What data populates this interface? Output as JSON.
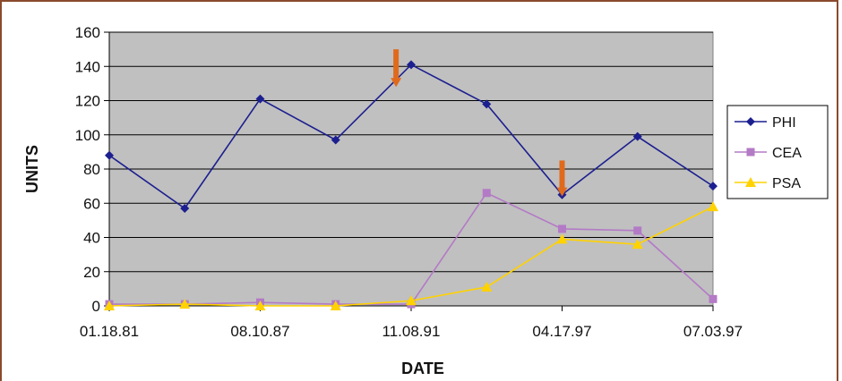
{
  "chart_data": {
    "type": "line",
    "xlabel": "DATE",
    "ylabel": "UNITS",
    "ylim": [
      0,
      160
    ],
    "yticks": [
      0,
      20,
      40,
      60,
      80,
      100,
      120,
      140,
      160
    ],
    "grid": true,
    "legend_position": "right",
    "points": 9,
    "x_tick_labels": [
      "01.18.81",
      "08.10.87",
      "11.08.91",
      "04.17.97",
      "07.03.97"
    ],
    "x_tick_indices": [
      0,
      2,
      4,
      6,
      8
    ],
    "series": [
      {
        "name": "PHI",
        "color": "#1c1f8f",
        "marker": "diamond",
        "values": [
          88,
          57,
          121,
          97,
          141,
          118,
          65,
          99,
          70
        ]
      },
      {
        "name": "CEA",
        "color": "#b37ac6",
        "marker": "square",
        "values": [
          1,
          1,
          2,
          1,
          1,
          66,
          45,
          44,
          4
        ]
      },
      {
        "name": "PSA",
        "color": "#ffd200",
        "marker": "triangle",
        "values": [
          0,
          1,
          0,
          0,
          3,
          11,
          39,
          36,
          58
        ]
      }
    ],
    "annotations": [
      {
        "type": "arrow-down",
        "color": "#e06a1c",
        "x_index": 3.8,
        "y_from": 150,
        "y_to": 128
      },
      {
        "type": "arrow-down",
        "color": "#e06a1c",
        "x_index": 6.0,
        "y_from": 85,
        "y_to": 64
      }
    ]
  }
}
